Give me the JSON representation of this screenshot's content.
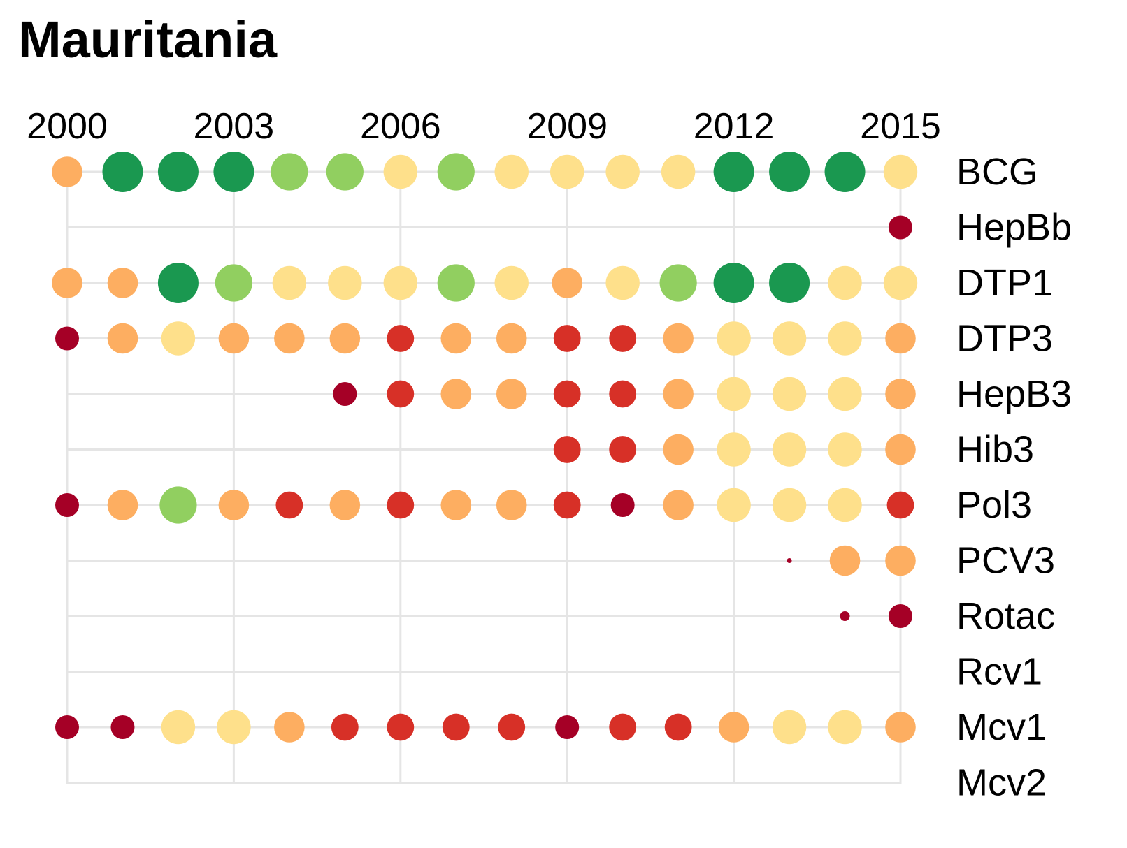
{
  "chart_data": {
    "type": "scatter",
    "title": "Mauritania",
    "xlabel": "",
    "ylabel": "",
    "x_ticks": [
      2000,
      2003,
      2006,
      2009,
      2012,
      2015
    ],
    "xlim": [
      2000,
      2015
    ],
    "years": [
      2000,
      2001,
      2002,
      2003,
      2004,
      2005,
      2006,
      2007,
      2008,
      2009,
      2010,
      2011,
      2012,
      2013,
      2014,
      2015
    ],
    "grid": true,
    "legend": "none",
    "level_colors": {
      "1": "#a50026",
      "2": "#d73027",
      "3": "#fdae61",
      "4": "#fee08b",
      "5": "#91cf60",
      "6": "#1a9850"
    },
    "rows": [
      {
        "label": "BCG",
        "levels": [
          3,
          6,
          6,
          6,
          5,
          5,
          4,
          5,
          4,
          4,
          4,
          4,
          6,
          6,
          6,
          4
        ]
      },
      {
        "label": "HepBb",
        "levels": [
          null,
          null,
          null,
          null,
          null,
          null,
          null,
          null,
          null,
          null,
          null,
          null,
          null,
          null,
          null,
          1
        ]
      },
      {
        "label": "DTP1",
        "levels": [
          3,
          3,
          6,
          5,
          4,
          4,
          4,
          5,
          4,
          3,
          4,
          5,
          6,
          6,
          4,
          4
        ]
      },
      {
        "label": "DTP3",
        "levels": [
          1,
          3,
          4,
          3,
          3,
          3,
          2,
          3,
          3,
          2,
          2,
          3,
          4,
          4,
          4,
          3
        ]
      },
      {
        "label": "HepB3",
        "levels": [
          null,
          null,
          null,
          null,
          null,
          1,
          2,
          3,
          3,
          2,
          2,
          3,
          4,
          4,
          4,
          3
        ]
      },
      {
        "label": "Hib3",
        "levels": [
          null,
          null,
          null,
          null,
          null,
          null,
          null,
          null,
          null,
          2,
          2,
          3,
          4,
          4,
          4,
          3
        ]
      },
      {
        "label": "Pol3",
        "levels": [
          1,
          3,
          5,
          3,
          2,
          3,
          2,
          3,
          3,
          2,
          1,
          3,
          4,
          4,
          4,
          2
        ]
      },
      {
        "label": "PCV3",
        "levels": [
          null,
          null,
          null,
          null,
          null,
          null,
          null,
          null,
          null,
          null,
          null,
          null,
          null,
          0,
          3,
          3
        ]
      },
      {
        "label": "Rotac",
        "levels": [
          null,
          null,
          null,
          null,
          null,
          null,
          null,
          null,
          null,
          null,
          null,
          null,
          null,
          null,
          0.5,
          1
        ]
      },
      {
        "label": "Rcv1",
        "levels": [
          null,
          null,
          null,
          null,
          null,
          null,
          null,
          null,
          null,
          null,
          null,
          null,
          null,
          null,
          null,
          null
        ]
      },
      {
        "label": "Mcv1",
        "levels": [
          1,
          1,
          4,
          4,
          3,
          2,
          2,
          2,
          2,
          1,
          2,
          2,
          3,
          4,
          4,
          3
        ]
      },
      {
        "label": "Mcv2",
        "levels": [
          null,
          null,
          null,
          null,
          null,
          null,
          null,
          null,
          null,
          null,
          null,
          null,
          null,
          null,
          null,
          null
        ]
      }
    ]
  }
}
